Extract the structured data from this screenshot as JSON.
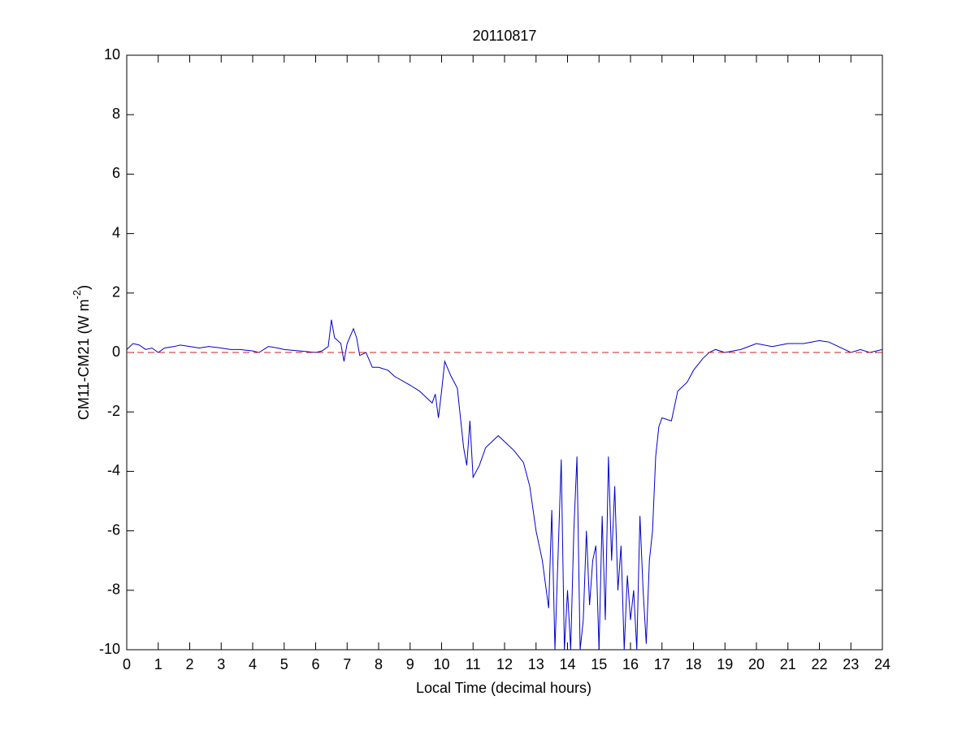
{
  "chart_data": {
    "type": "line",
    "title": "20110817",
    "xlabel": "Local Time (decimal hours)",
    "ylabel": [
      "CM11-CM21 (W m",
      "-2",
      ")"
    ],
    "xlim": [
      0,
      24
    ],
    "ylim": [
      -10,
      10
    ],
    "xticks": [
      0,
      1,
      2,
      3,
      4,
      5,
      6,
      7,
      8,
      9,
      10,
      11,
      12,
      13,
      14,
      15,
      16,
      17,
      18,
      19,
      20,
      21,
      22,
      23,
      24
    ],
    "yticks": [
      -10,
      -8,
      -6,
      -4,
      -2,
      0,
      2,
      4,
      6,
      8,
      10
    ],
    "reference_line": {
      "value": 0,
      "color": "#cc2222",
      "dashed": true
    },
    "series": [
      {
        "color": "#0000cc",
        "x": [
          0,
          0.2,
          0.4,
          0.6,
          0.8,
          1,
          1.2,
          1.5,
          1.7,
          2,
          2.3,
          2.6,
          3,
          3.3,
          3.6,
          4,
          4.2,
          4.5,
          4.8,
          5,
          5.5,
          6,
          6.2,
          6.4,
          6.5,
          6.6,
          6.8,
          6.9,
          7,
          7.2,
          7.3,
          7.4,
          7.6,
          7.8,
          8,
          8.3,
          8.5,
          9,
          9.3,
          9.5,
          9.7,
          9.8,
          9.9,
          10,
          10.1,
          10.3,
          10.5,
          10.6,
          10.7,
          10.8,
          10.9,
          11,
          11.2,
          11.4,
          11.6,
          11.8,
          12,
          12.3,
          12.6,
          12.8,
          13,
          13.2,
          13.4,
          13.5,
          13.6,
          13.7,
          13.8,
          13.9,
          14,
          14.1,
          14.2,
          14.3,
          14.4,
          14.5,
          14.6,
          14.7,
          14.8,
          14.9,
          15,
          15.1,
          15.2,
          15.3,
          15.4,
          15.5,
          15.6,
          15.7,
          15.8,
          15.9,
          16,
          16.1,
          16.2,
          16.3,
          16.4,
          16.5,
          16.6,
          16.7,
          16.8,
          16.9,
          17,
          17.3,
          17.5,
          17.8,
          18,
          18.3,
          18.5,
          18.7,
          19,
          19.5,
          20,
          20.5,
          21,
          21.5,
          22,
          22.3,
          22.5,
          23,
          23.3,
          23.6,
          24
        ],
        "values": [
          0.1,
          0.3,
          0.25,
          0.1,
          0.15,
          0,
          0.15,
          0.2,
          0.25,
          0.2,
          0.15,
          0.2,
          0.15,
          0.1,
          0.1,
          0.05,
          0,
          0.2,
          0.15,
          0.1,
          0.05,
          0,
          0.05,
          0.2,
          1.1,
          0.5,
          0.3,
          -0.3,
          0.3,
          0.8,
          0.5,
          -0.1,
          0,
          -0.5,
          -0.5,
          -0.6,
          -0.8,
          -1.1,
          -1.3,
          -1.5,
          -1.7,
          -1.4,
          -2.2,
          -1.3,
          -0.3,
          -0.8,
          -1.2,
          -2.2,
          -3.2,
          -3.8,
          -2.3,
          -4.2,
          -3.8,
          -3.2,
          -3,
          -2.8,
          -3,
          -3.3,
          -3.7,
          -4.5,
          -6,
          -7,
          -8.6,
          -5.3,
          -10,
          -6.8,
          -3.6,
          -10,
          -8,
          -10,
          -6,
          -3.5,
          -10,
          -9,
          -6,
          -8.5,
          -7,
          -6.5,
          -10,
          -5.5,
          -9,
          -3.5,
          -7,
          -4.5,
          -8,
          -6.5,
          -10,
          -7.5,
          -9,
          -8,
          -10,
          -5.5,
          -8,
          -9.8,
          -7,
          -6,
          -3.5,
          -2.5,
          -2.2,
          -2.3,
          -1.3,
          -1,
          -0.6,
          -0.2,
          0,
          0.1,
          0,
          0.1,
          0.3,
          0.2,
          0.3,
          0.3,
          0.4,
          0.35,
          0.25,
          0,
          0.1,
          0,
          0.1
        ]
      }
    ]
  }
}
